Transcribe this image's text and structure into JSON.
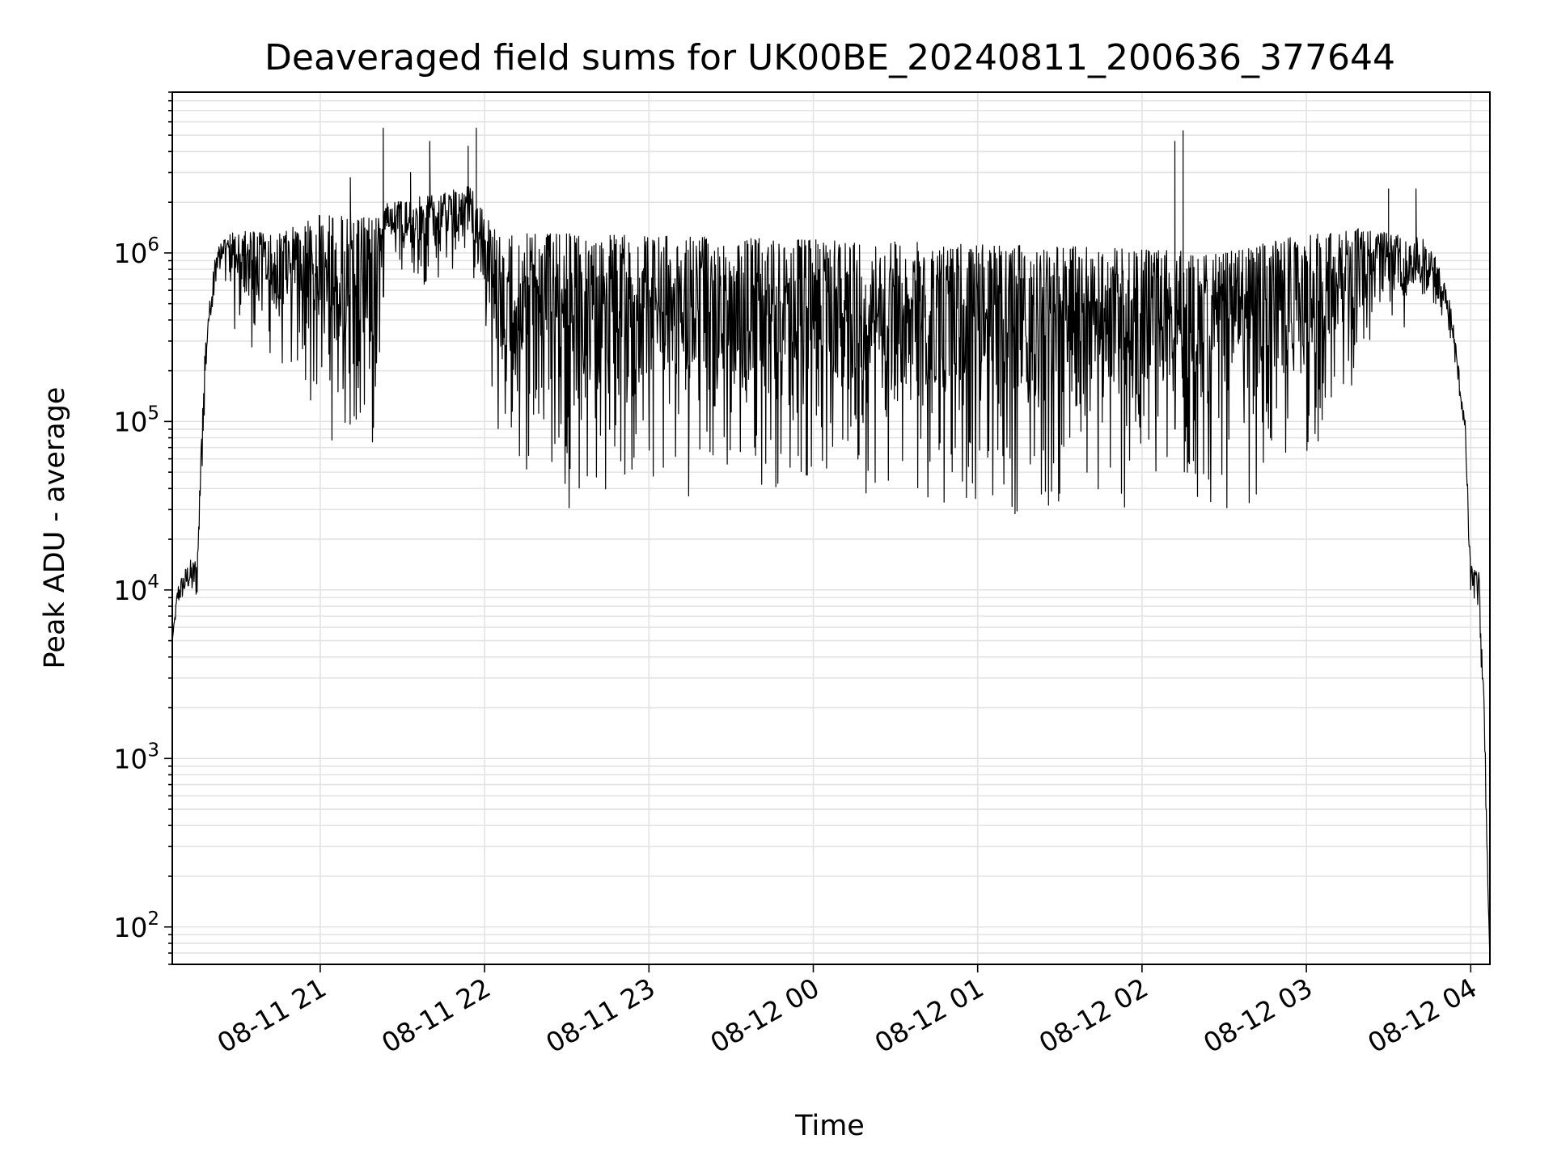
{
  "chart_data": {
    "type": "line",
    "title": "Deaveraged field sums for UK00BE_20240811_200636_377644",
    "xlabel": "Time",
    "ylabel": "Peak ADU - average",
    "y_scale": "log",
    "ylim": [
      60,
      9000000
    ],
    "xlim": [
      "2024-08-11 20:06",
      "2024-08-12 04:07"
    ],
    "grid": true,
    "line_color": "#000000",
    "grid_color": "#e3e3e3",
    "x_ticks": [
      {
        "value": "2024-08-11 21:00",
        "label": "08-11 21"
      },
      {
        "value": "2024-08-11 22:00",
        "label": "08-11 22"
      },
      {
        "value": "2024-08-11 23:00",
        "label": "08-11 23"
      },
      {
        "value": "2024-08-12 00:00",
        "label": "08-12 00"
      },
      {
        "value": "2024-08-12 01:00",
        "label": "08-12 01"
      },
      {
        "value": "2024-08-12 02:00",
        "label": "08-12 02"
      },
      {
        "value": "2024-08-12 03:00",
        "label": "08-12 03"
      },
      {
        "value": "2024-08-12 04:00",
        "label": "08-12 04"
      }
    ],
    "y_ticks": [
      {
        "value": 100,
        "base": "10",
        "exp": "2"
      },
      {
        "value": 1000,
        "base": "10",
        "exp": "3"
      },
      {
        "value": 10000,
        "base": "10",
        "exp": "4"
      },
      {
        "value": 100000,
        "base": "10",
        "exp": "5"
      },
      {
        "value": 1000000,
        "base": "10",
        "exp": "6"
      }
    ],
    "series": [
      {
        "style": "envelope-noisy",
        "points": [
          {
            "t": "2024-08-11 20:06",
            "low": 5000,
            "high": 5000
          },
          {
            "t": "2024-08-11 20:08",
            "low": 8000,
            "high": 11000
          },
          {
            "t": "2024-08-11 20:12",
            "low": 10000,
            "high": 15000
          },
          {
            "t": "2024-08-11 20:15",
            "low": 8000,
            "high": 16000
          },
          {
            "t": "2024-08-11 20:18",
            "low": 150000,
            "high": 300000
          },
          {
            "t": "2024-08-11 20:22",
            "low": 700000,
            "high": 1100000
          },
          {
            "t": "2024-08-11 20:30",
            "low": 300000,
            "high": 1400000
          },
          {
            "t": "2024-08-11 20:45",
            "low": 200000,
            "high": 1300000
          },
          {
            "t": "2024-08-11 21:00",
            "low": 80000,
            "high": 1700000
          },
          {
            "t": "2024-08-11 21:20",
            "low": 50000,
            "high": 1600000
          },
          {
            "t": "2024-08-11 21:24",
            "low": 900000,
            "high": 2000000
          },
          {
            "t": "2024-08-11 21:40",
            "low": 600000,
            "high": 2200000
          },
          {
            "t": "2024-08-11 21:55",
            "low": 900000,
            "high": 2500000
          },
          {
            "t": "2024-08-11 22:05",
            "low": 60000,
            "high": 1300000
          },
          {
            "t": "2024-08-11 22:30",
            "low": 30000,
            "high": 1300000
          },
          {
            "t": "2024-08-12 00:00",
            "low": 40000,
            "high": 1200000
          },
          {
            "t": "2024-08-12 01:30",
            "low": 25000,
            "high": 1100000
          },
          {
            "t": "2024-08-12 02:30",
            "low": 25000,
            "high": 1000000
          },
          {
            "t": "2024-08-12 03:00",
            "low": 50000,
            "high": 1300000
          },
          {
            "t": "2024-08-12 03:20",
            "low": 200000,
            "high": 1400000
          },
          {
            "t": "2024-08-12 03:45",
            "low": 500000,
            "high": 1200000
          },
          {
            "t": "2024-08-12 03:53",
            "low": 300000,
            "high": 500000
          },
          {
            "t": "2024-08-12 03:58",
            "low": 80000,
            "high": 100000
          },
          {
            "t": "2024-08-12 04:00",
            "low": 7000,
            "high": 14000
          },
          {
            "t": "2024-08-12 04:03",
            "low": 8000,
            "high": 13000
          },
          {
            "t": "2024-08-12 04:05",
            "low": 1000,
            "high": 2000
          },
          {
            "t": "2024-08-12 04:07",
            "low": 60,
            "high": 60
          }
        ],
        "spikes": [
          {
            "t": "2024-08-11 21:11",
            "value": 2800000
          },
          {
            "t": "2024-08-11 21:23",
            "value": 5500000
          },
          {
            "t": "2024-08-11 21:33",
            "value": 3000000
          },
          {
            "t": "2024-08-11 21:40",
            "value": 4600000
          },
          {
            "t": "2024-08-11 21:54",
            "value": 4300000
          },
          {
            "t": "2024-08-11 21:57",
            "value": 5500000
          },
          {
            "t": "2024-08-12 02:12",
            "value": 4600000
          },
          {
            "t": "2024-08-12 02:15",
            "value": 5300000
          },
          {
            "t": "2024-08-12 03:30",
            "value": 2400000
          },
          {
            "t": "2024-08-12 03:40",
            "value": 2400000
          }
        ]
      }
    ]
  }
}
